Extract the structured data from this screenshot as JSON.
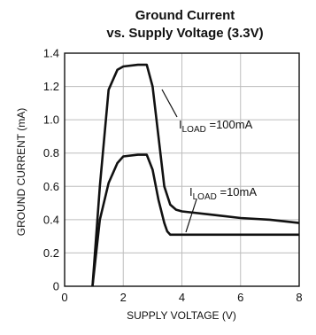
{
  "chart_data": {
    "type": "line",
    "title": "Ground Current",
    "subtitle": "vs. Supply Voltage (3.3V)",
    "xlabel": "SUPPLY VOLTAGE (V)",
    "ylabel": "GROUND CURRENT (mA)",
    "xlim": [
      0,
      8
    ],
    "ylim": [
      0,
      1.4
    ],
    "xticks": [
      0,
      2,
      4,
      6,
      8
    ],
    "xtick_labels": [
      "0",
      "2",
      "4",
      "6",
      "8"
    ],
    "yticks": [
      0,
      0.2,
      0.4,
      0.6,
      0.8,
      1.0,
      1.2,
      1.4
    ],
    "ytick_labels": [
      "0",
      "0.2",
      "0.4",
      "0.6",
      "0.8",
      "1.0",
      "1.2",
      "1.4"
    ],
    "grid": true,
    "series": [
      {
        "name": "ILOAD = 100mA",
        "x": [
          0.95,
          1.2,
          1.5,
          1.8,
          2.0,
          2.5,
          2.8,
          3.0,
          3.2,
          3.4,
          3.6,
          3.8,
          4.0,
          5.0,
          6.0,
          7.0,
          8.0
        ],
        "y": [
          0.0,
          0.6,
          1.18,
          1.3,
          1.32,
          1.33,
          1.33,
          1.2,
          0.9,
          0.6,
          0.49,
          0.46,
          0.45,
          0.43,
          0.41,
          0.4,
          0.38
        ]
      },
      {
        "name": "ILOAD = 10mA",
        "x": [
          0.95,
          1.2,
          1.5,
          1.8,
          2.0,
          2.5,
          2.8,
          3.0,
          3.2,
          3.4,
          3.5,
          3.6,
          3.8,
          4.0,
          5.0,
          6.0,
          7.0,
          8.0
        ],
        "y": [
          0.0,
          0.4,
          0.62,
          0.74,
          0.78,
          0.79,
          0.79,
          0.7,
          0.52,
          0.38,
          0.33,
          0.31,
          0.31,
          0.31,
          0.31,
          0.31,
          0.31,
          0.31
        ]
      }
    ],
    "annotations": [
      {
        "main": "I",
        "sub": "LOAD",
        "rest": " =100mA",
        "series_index": 0
      },
      {
        "main": "I",
        "sub": "LOAD",
        "rest": " =10mA",
        "series_index": 1
      }
    ]
  }
}
